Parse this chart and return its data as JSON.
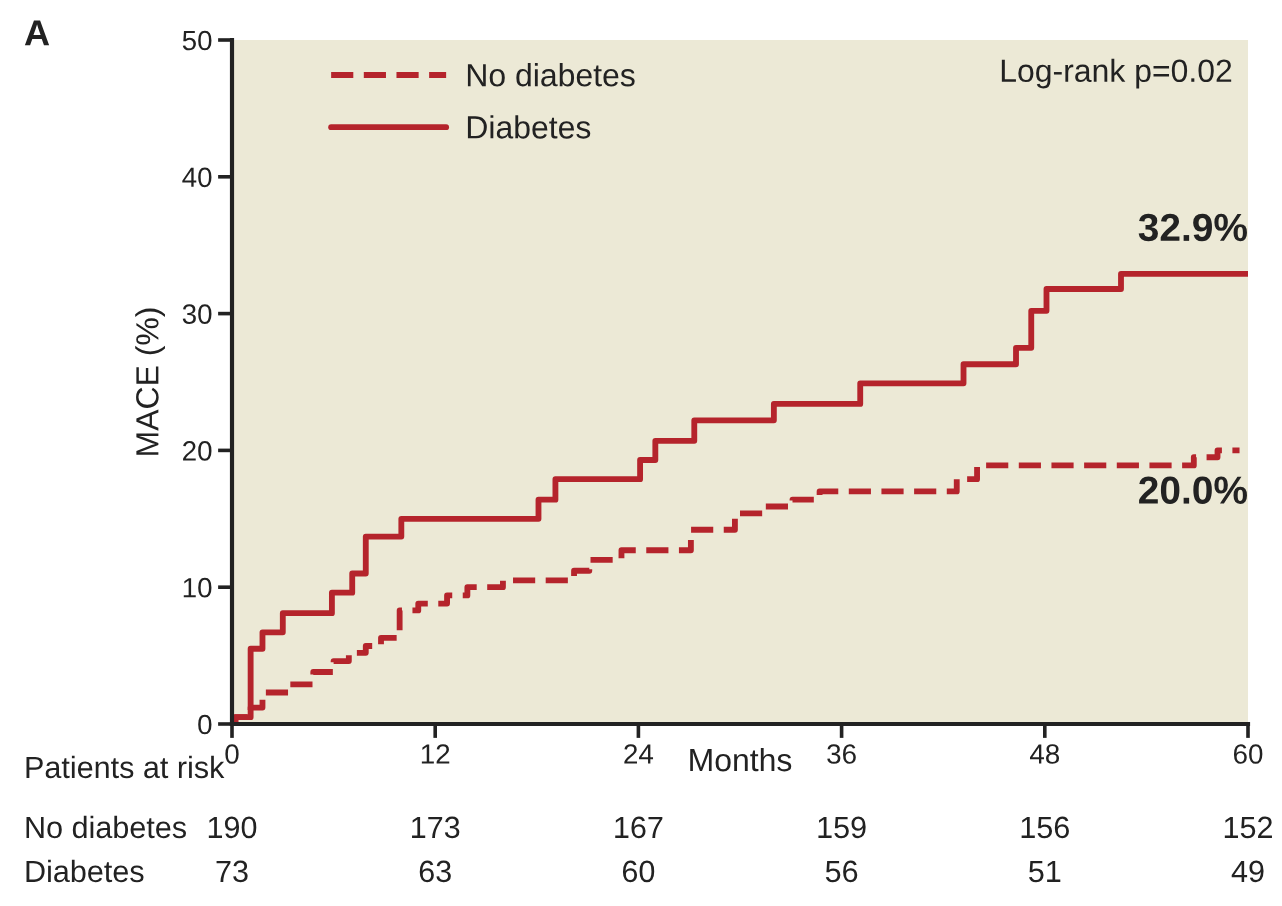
{
  "chart_data": [
    {
      "type": "step",
      "title": "A",
      "xlabel": "Months",
      "ylabel": "MACE (%)",
      "xlim": [
        0,
        60
      ],
      "xticks": [
        0,
        12,
        24,
        36,
        48,
        60
      ],
      "ylim": [
        0,
        50
      ],
      "yticks": [
        0,
        10,
        20,
        30,
        40,
        50
      ],
      "legend": "top left",
      "annotations": [
        "Log-rank p=0.02",
        {
          "text": "32.9%",
          "x": 60,
          "y": 32.9
        },
        {
          "text": "20.0%",
          "x": 60,
          "y": 20.0
        }
      ],
      "series": [
        {
          "name": "No diabetes",
          "color": "#b5242c",
          "line_style": "dashed",
          "x": [
            0,
            0.2,
            1.1,
            1.8,
            3.4,
            4.8,
            6.0,
            6.9,
            7.9,
            8.8,
            9.9,
            11.0,
            12.7,
            13.9,
            16.0,
            20.2,
            21.1,
            23.0,
            27.1,
            29.7,
            31.4,
            33.1,
            34.7,
            42.8,
            44.0,
            56.8,
            58.2,
            59.5
          ],
          "values": [
            0,
            0.5,
            1.2,
            2.3,
            2.9,
            3.8,
            4.6,
            5.2,
            5.7,
            6.3,
            8.3,
            8.8,
            9.4,
            10.0,
            10.5,
            11.2,
            12.0,
            12.7,
            14.2,
            15.4,
            15.9,
            16.4,
            17.0,
            17.9,
            18.9,
            19.5,
            20.0,
            20.0
          ]
        },
        {
          "name": "Diabetes",
          "color": "#b5242c",
          "line_style": "solid",
          "x": [
            0,
            0.2,
            1.1,
            1.8,
            3.0,
            5.9,
            7.1,
            7.9,
            10.0,
            18.1,
            19.1,
            24.1,
            25.0,
            27.3,
            32.0,
            37.1,
            43.2,
            46.3,
            47.2,
            48.1,
            52.5,
            60
          ],
          "values": [
            0,
            0.5,
            5.5,
            6.7,
            8.1,
            9.6,
            11.0,
            13.7,
            15.0,
            16.4,
            17.9,
            19.3,
            20.7,
            22.2,
            23.4,
            24.9,
            26.3,
            27.5,
            30.2,
            31.8,
            32.9,
            32.9
          ]
        }
      ]
    },
    {
      "type": "other",
      "title": "Patients at risk",
      "categories": [
        null,
        null,
        null,
        null,
        null,
        null
      ],
      "y_categories": [
        "No diabetes",
        "Diabetes"
      ],
      "cell_labels": [
        [
          "190",
          "173",
          "167",
          "159",
          "156",
          "152"
        ],
        [
          "73",
          "63",
          "60",
          "56",
          "51",
          "49"
        ]
      ]
    }
  ]
}
